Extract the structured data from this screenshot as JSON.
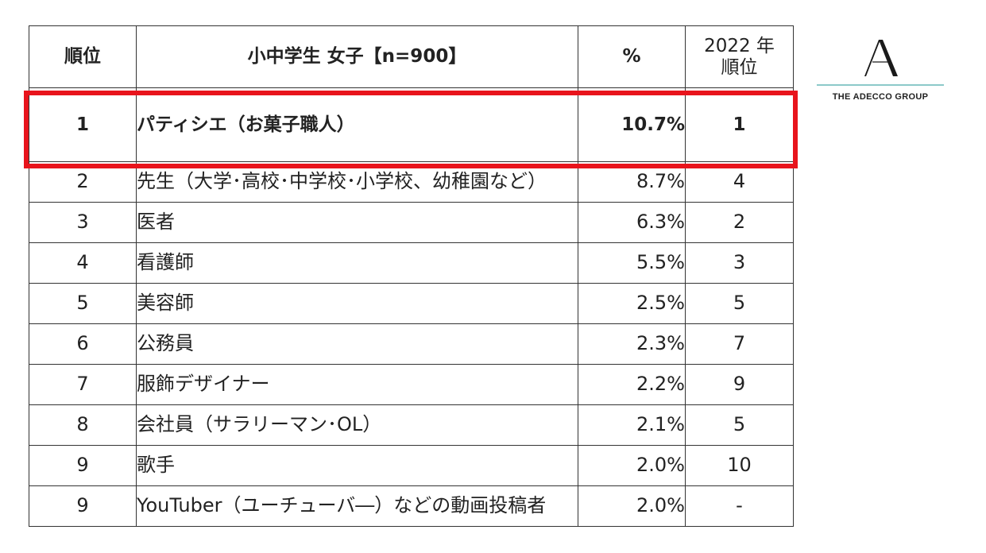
{
  "header": {
    "rank": "順位",
    "job": "小中学生 女子【n=900】",
    "percent": "%",
    "prev_line1": "2022 年",
    "prev_line2": "順位"
  },
  "rows": [
    {
      "rank": "1",
      "job": "パティシエ（お菓子職人）",
      "percent": "10.7%",
      "prev": "1"
    },
    {
      "rank": "2",
      "job": "先生（大学･高校･中学校･小学校、幼稚園など）",
      "percent": "8.7%",
      "prev": "4"
    },
    {
      "rank": "3",
      "job": "医者",
      "percent": "6.3%",
      "prev": "2"
    },
    {
      "rank": "4",
      "job": "看護師",
      "percent": "5.5%",
      "prev": "3"
    },
    {
      "rank": "5",
      "job": "美容師",
      "percent": "2.5%",
      "prev": "5"
    },
    {
      "rank": "6",
      "job": "公務員",
      "percent": "2.3%",
      "prev": "7"
    },
    {
      "rank": "7",
      "job": "服飾デザイナー",
      "percent": "2.2%",
      "prev": "9"
    },
    {
      "rank": "8",
      "job": "会社員（サラリーマン･OL）",
      "percent": "2.1%",
      "prev": "5"
    },
    {
      "rank": "9",
      "job": "歌手",
      "percent": "2.0%",
      "prev": "10"
    },
    {
      "rank": "9",
      "job": "YouTuber（ユーチューバ―）などの動画投稿者",
      "percent": "2.0%",
      "prev": "-"
    }
  ],
  "logo": {
    "text": "THE ADECCO GROUP",
    "icon": "adecco-a-icon",
    "rule_color": "#8cc9c9"
  },
  "highlight": {
    "color": "#e8141c"
  }
}
